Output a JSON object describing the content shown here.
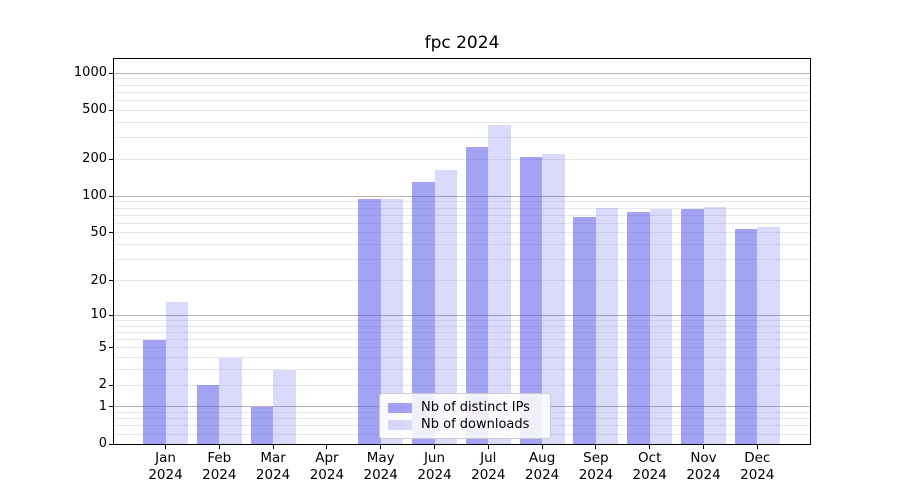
{
  "title": "fpc 2024",
  "chart_data": {
    "type": "bar",
    "title": "fpc 2024",
    "x_categories": [
      "Jan",
      "Feb",
      "Mar",
      "Apr",
      "May",
      "Jun",
      "Jul",
      "Aug",
      "Sep",
      "Oct",
      "Nov",
      "Dec"
    ],
    "x_year": "2024",
    "series": [
      {
        "name": "Nb of distinct IPs",
        "color": "rgba(85,85,235,0.54)",
        "values": [
          6,
          2,
          1,
          0,
          95,
          130,
          250,
          210,
          68,
          74,
          78,
          54
        ]
      },
      {
        "name": "Nb of downloads",
        "color": "rgba(85,85,235,0.22)",
        "values": [
          13,
          4,
          3,
          0,
          95,
          165,
          380,
          220,
          80,
          79,
          81,
          56
        ]
      }
    ],
    "y_scale": "log1p",
    "ylim": [
      0,
      1300
    ],
    "y_axis_ticks": [
      0,
      1,
      2,
      5,
      10,
      20,
      50,
      100,
      200,
      500,
      1000
    ],
    "y_major_gridlines": [
      1,
      10,
      100,
      1000
    ],
    "y_minor_gridlines": [
      0.2,
      0.4,
      0.6,
      0.8,
      2,
      3,
      4,
      5,
      6,
      7,
      8,
      9,
      20,
      30,
      40,
      50,
      60,
      70,
      80,
      90,
      200,
      300,
      400,
      500,
      600,
      700,
      800,
      900
    ],
    "grid": true,
    "legend_position": "lower center",
    "colors": {
      "bar_dark": "rgba(85,85,235,0.54)",
      "bar_light": "rgba(85,85,235,0.22)",
      "major_grid": "#b3b3b3",
      "minor_grid": "#e7e7e7",
      "spine": "#000000",
      "text": "#000000",
      "legend_border": "#cccccc"
    }
  }
}
